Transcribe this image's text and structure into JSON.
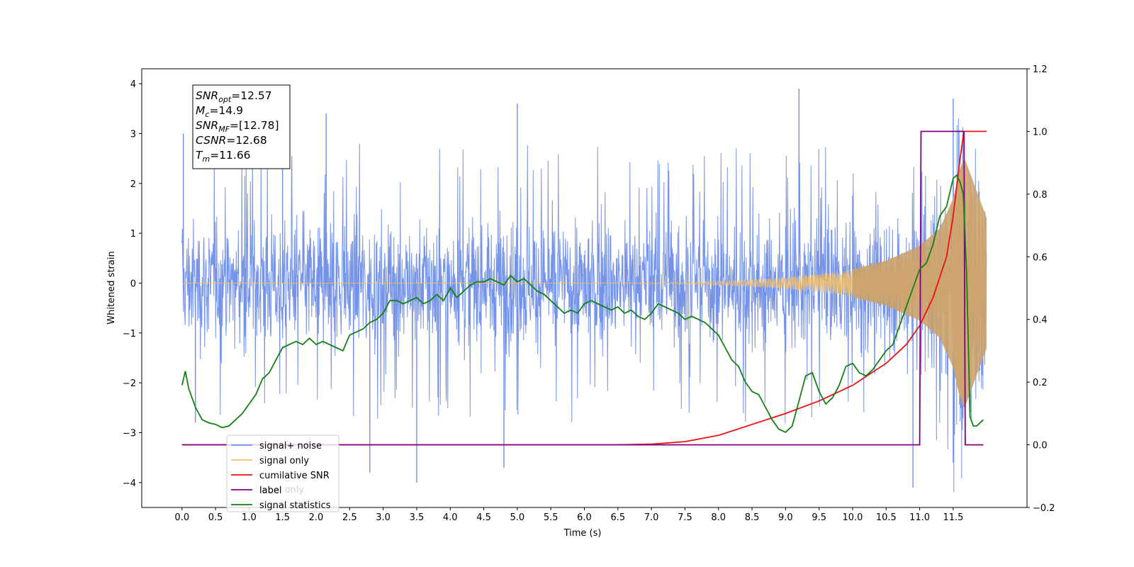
{
  "chart_data": {
    "type": "line",
    "title": "",
    "xlabel": "Time (s)",
    "ylabel": "Whitened strain",
    "ylabel_right": "",
    "xlim": [
      -0.6,
      12.6
    ],
    "ylim": [
      -4.5,
      4.3
    ],
    "ylim_right": [
      -0.2,
      1.2
    ],
    "grid": false,
    "legend_position": "lower-left",
    "x_ticks": [
      "0.0",
      "0.5",
      "1.0",
      "1.5",
      "2.0",
      "2.5",
      "3.0",
      "3.5",
      "4.0",
      "4.5",
      "5.0",
      "5.5",
      "6.0",
      "6.5",
      "7.0",
      "7.5",
      "8.0",
      "8.5",
      "9.0",
      "9.5",
      "10.0",
      "10.5",
      "11.0",
      "11.5"
    ],
    "y_ticks_left": [
      "4",
      "3",
      "2",
      "1",
      "0",
      "−1",
      "−2",
      "−3",
      "−4"
    ],
    "y_ticks_right": [
      "1.2",
      "1.0",
      "0.8",
      "0.6",
      "0.4",
      "0.2",
      "0.0",
      "−0.2"
    ],
    "annotation": {
      "lines": [
        {
          "sym": "SNR",
          "sub": "opt",
          "value": "=12.57"
        },
        {
          "sym": "M",
          "sub": "c",
          "value": "=14.9"
        },
        {
          "sym": "SNR",
          "sub": "MF",
          "value": "=[12.78]"
        },
        {
          "sym": "CSNR",
          "sub": "",
          "value": "=12.68"
        },
        {
          "sym": "T",
          "sub": "m",
          "value": "=11.66"
        }
      ]
    },
    "legend": [
      {
        "label": "signal+ noise",
        "color": "#6f8ee6"
      },
      {
        "label": "signal only",
        "color": "#f5c06a"
      },
      {
        "label": "cumilative SNR",
        "color": "#ee1111"
      },
      {
        "label": "label",
        "color": "#800080"
      },
      {
        "label": "signal statistics",
        "color": "#138013"
      }
    ],
    "hidden_legend_text": "label only",
    "series": [
      {
        "name": "signal+ noise",
        "axis": "left",
        "style": "noise-band",
        "color": "#6f8ee6",
        "x_range": [
          0.0,
          12.0
        ],
        "typical_envelope": [
          -2.2,
          2.6
        ],
        "peak_x": [
          0.02,
          0.2,
          1.5,
          2.15,
          2.8,
          3.5,
          4.8,
          5.0,
          9.2,
          10.9,
          11.5,
          11.5
        ],
        "peak_y": [
          3.0,
          -2.8,
          2.6,
          3.4,
          -3.8,
          -4.0,
          -3.7,
          3.6,
          3.9,
          -4.1,
          3.7,
          -3.6
        ]
      },
      {
        "name": "signal only",
        "axis": "left",
        "style": "chirp",
        "color": "#f5c06a",
        "x_range": [
          0.0,
          12.0
        ],
        "merger_time": 11.66,
        "envelope_x": [
          0,
          2,
          4,
          6,
          7,
          7.5,
          8,
          8.5,
          9,
          9.5,
          10,
          10.5,
          11,
          11.3,
          11.5,
          11.6,
          11.66,
          11.7,
          12.0
        ],
        "envelope_amp": [
          0.0,
          0.0,
          0.0,
          0.0,
          0.01,
          0.02,
          0.04,
          0.07,
          0.12,
          0.18,
          0.28,
          0.45,
          0.75,
          1.1,
          1.7,
          2.3,
          2.5,
          2.4,
          1.3
        ]
      },
      {
        "name": "cumilative SNR",
        "axis": "right",
        "color": "#ee1111",
        "x": [
          0,
          6.5,
          7.0,
          7.5,
          8.0,
          8.5,
          9.0,
          9.5,
          10.0,
          10.5,
          10.8,
          11.0,
          11.2,
          11.4,
          11.5,
          11.6,
          11.66,
          12.0
        ],
        "y": [
          0.0,
          0.0,
          0.002,
          0.01,
          0.03,
          0.065,
          0.1,
          0.14,
          0.19,
          0.26,
          0.32,
          0.38,
          0.47,
          0.6,
          0.73,
          0.91,
          1.0,
          1.0
        ]
      },
      {
        "name": "label",
        "axis": "right",
        "color": "#800080",
        "x": [
          0,
          11.0,
          11.02,
          11.66,
          11.68,
          11.95
        ],
        "y": [
          0.0,
          0.0,
          1.0,
          1.0,
          0.0,
          0.0
        ]
      },
      {
        "name": "signal statistics",
        "axis": "right",
        "color": "#138013",
        "x": [
          0.0,
          0.05,
          0.1,
          0.2,
          0.3,
          0.4,
          0.5,
          0.6,
          0.7,
          0.8,
          0.9,
          1.0,
          1.1,
          1.2,
          1.3,
          1.4,
          1.5,
          1.6,
          1.7,
          1.8,
          1.9,
          2.0,
          2.1,
          2.2,
          2.3,
          2.4,
          2.5,
          2.6,
          2.7,
          2.8,
          2.9,
          3.0,
          3.1,
          3.2,
          3.3,
          3.4,
          3.5,
          3.6,
          3.7,
          3.8,
          3.9,
          4.0,
          4.1,
          4.2,
          4.3,
          4.4,
          4.5,
          4.6,
          4.7,
          4.8,
          4.9,
          5.0,
          5.1,
          5.2,
          5.3,
          5.4,
          5.5,
          5.6,
          5.7,
          5.8,
          5.9,
          6.0,
          6.1,
          6.2,
          6.3,
          6.4,
          6.5,
          6.6,
          6.7,
          6.8,
          6.9,
          7.0,
          7.1,
          7.2,
          7.3,
          7.4,
          7.5,
          7.6,
          7.7,
          7.8,
          7.9,
          8.0,
          8.1,
          8.2,
          8.3,
          8.4,
          8.5,
          8.6,
          8.7,
          8.8,
          8.9,
          9.0,
          9.1,
          9.2,
          9.3,
          9.4,
          9.5,
          9.6,
          9.7,
          9.8,
          9.9,
          10.0,
          10.1,
          10.2,
          10.3,
          10.4,
          10.5,
          10.6,
          10.7,
          10.8,
          10.9,
          11.0,
          11.1,
          11.2,
          11.3,
          11.4,
          11.5,
          11.55,
          11.6,
          11.65,
          11.7,
          11.75,
          11.8,
          11.85,
          11.9,
          11.95
        ],
        "y": [
          0.19,
          0.235,
          0.18,
          0.12,
          0.08,
          0.07,
          0.065,
          0.055,
          0.06,
          0.08,
          0.1,
          0.13,
          0.16,
          0.21,
          0.23,
          0.27,
          0.31,
          0.32,
          0.33,
          0.32,
          0.34,
          0.32,
          0.33,
          0.32,
          0.31,
          0.3,
          0.35,
          0.36,
          0.37,
          0.39,
          0.4,
          0.42,
          0.46,
          0.46,
          0.45,
          0.46,
          0.47,
          0.45,
          0.46,
          0.48,
          0.46,
          0.5,
          0.47,
          0.49,
          0.51,
          0.52,
          0.52,
          0.53,
          0.52,
          0.51,
          0.54,
          0.52,
          0.53,
          0.51,
          0.49,
          0.48,
          0.46,
          0.44,
          0.42,
          0.43,
          0.42,
          0.45,
          0.46,
          0.45,
          0.44,
          0.43,
          0.44,
          0.42,
          0.43,
          0.41,
          0.4,
          0.42,
          0.45,
          0.44,
          0.43,
          0.42,
          0.4,
          0.41,
          0.4,
          0.39,
          0.37,
          0.35,
          0.31,
          0.27,
          0.25,
          0.2,
          0.17,
          0.16,
          0.12,
          0.08,
          0.05,
          0.04,
          0.06,
          0.14,
          0.22,
          0.23,
          0.17,
          0.13,
          0.15,
          0.19,
          0.25,
          0.26,
          0.23,
          0.22,
          0.24,
          0.27,
          0.3,
          0.32,
          0.38,
          0.44,
          0.5,
          0.56,
          0.58,
          0.64,
          0.73,
          0.76,
          0.85,
          0.86,
          0.84,
          0.8,
          0.55,
          0.09,
          0.06,
          0.06,
          0.07,
          0.08
        ]
      }
    ]
  }
}
